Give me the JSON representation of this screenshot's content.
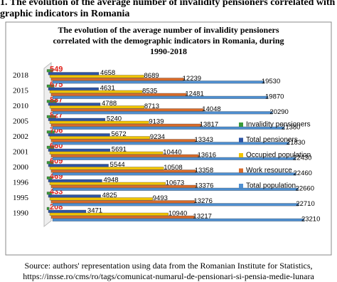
{
  "caption": [
    "1. The evolution of the average number of invalidity pensioners correlated with",
    "graphic indicators in Romania"
  ],
  "chart_data": {
    "type": "bar",
    "orientation": "horizontal",
    "title": [
      "The evolution of the average number of invalidity pensioners",
      "correlated with the demographic indicators in Romania, during",
      "1990-2018"
    ],
    "categories": [
      "1990",
      "1995",
      "1996",
      "2000",
      "2001",
      "2002",
      "2005",
      "2010",
      "2015",
      "2018"
    ],
    "series": [
      {
        "name": "Invalidity pensioners",
        "color": "#3a9a3a",
        "values": [
          208,
          433,
          469,
          609,
          660,
          706,
          827,
          887,
          675,
          549
        ]
      },
      {
        "name": "Total pensioners",
        "color": "#2e54a3",
        "values": [
          3471,
          4825,
          4948,
          5544,
          5691,
          5672,
          5240,
          4788,
          4631,
          4658
        ]
      },
      {
        "name": "Occupied population",
        "color": "#f2c500",
        "values": [
          10940,
          9493,
          10673,
          10508,
          10440,
          9234,
          9139,
          8713,
          8535,
          8689
        ]
      },
      {
        "name": "Work resource",
        "color": "#d86b2a",
        "values": [
          13217,
          13276,
          13376,
          13358,
          13616,
          13343,
          13817,
          14048,
          12481,
          12239
        ]
      },
      {
        "name": "Total population",
        "color": "#4f8fd0",
        "values": [
          23210,
          22710,
          22660,
          22460,
          22430,
          21830,
          21380,
          20290,
          19870,
          19530
        ]
      }
    ],
    "xlim": [
      0,
      24000
    ],
    "legend": "right"
  },
  "source": [
    "Source: authors' representation using data from the Romanian Institute for Statistics,",
    "https://insse.ro/cms/ro/tags/comunicat-numarul-de-pensionari-si-pensia-medie-lunara"
  ]
}
